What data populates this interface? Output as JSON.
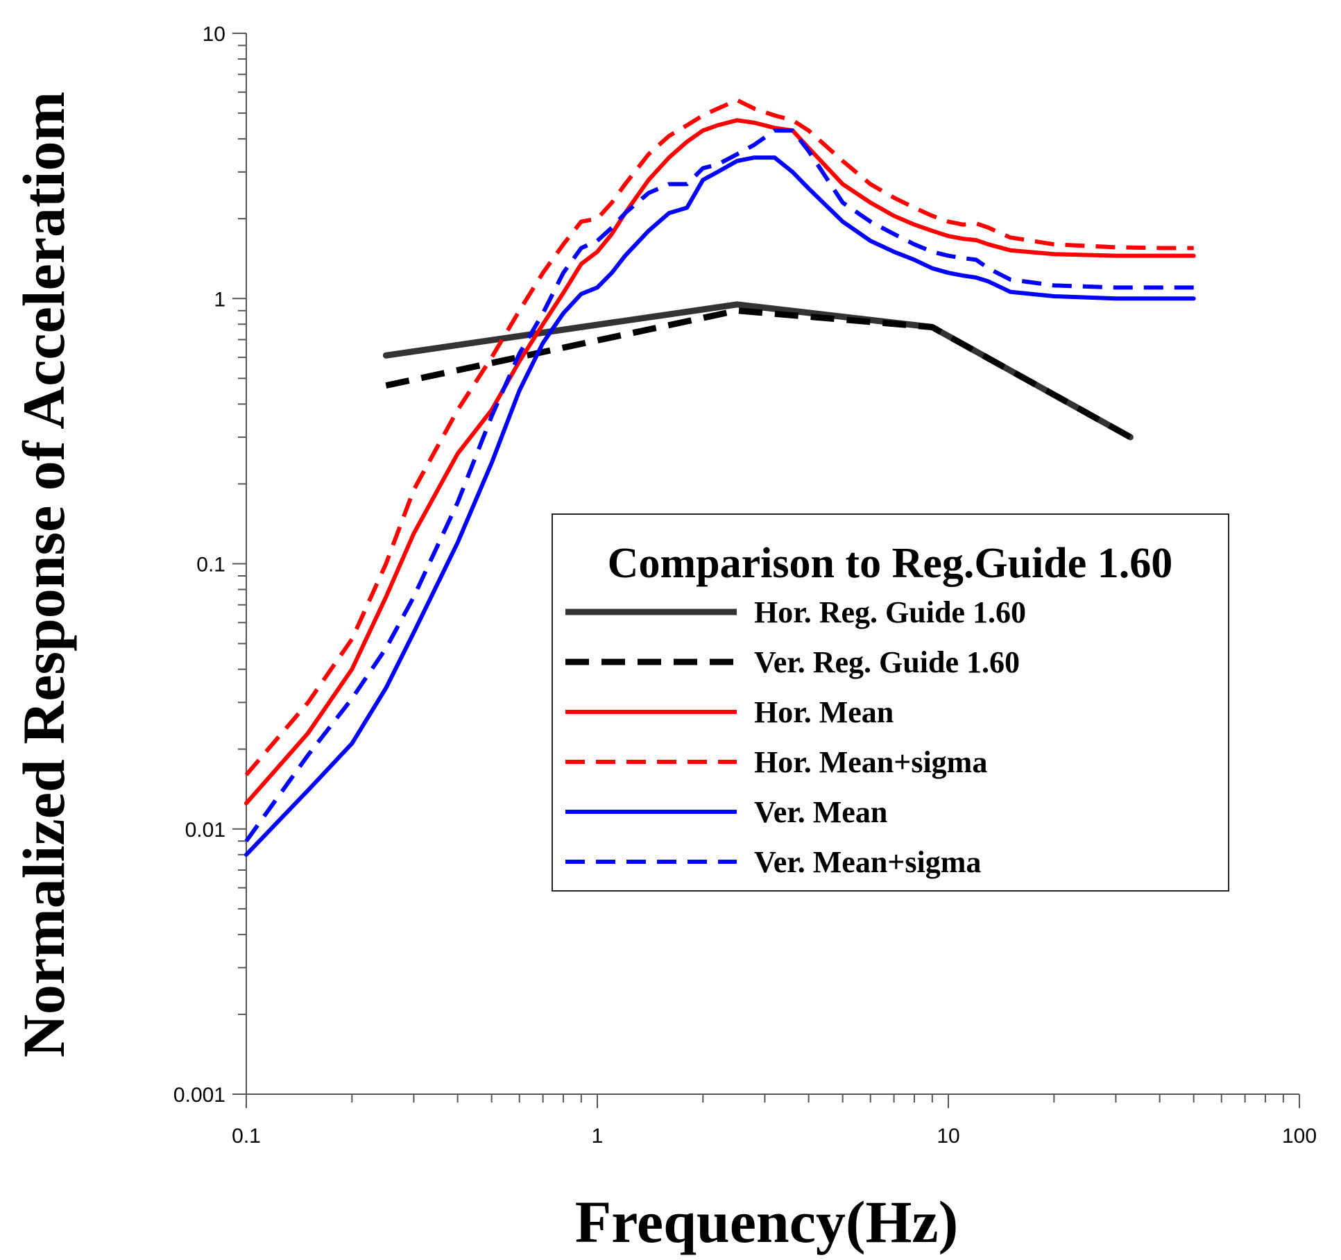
{
  "chart_data": {
    "type": "line",
    "xscale": "log",
    "yscale": "log",
    "xlabel": "Frequency(Hz)",
    "ylabel": "Normalized Response of Acceleratiom",
    "xlim": [
      0.1,
      100
    ],
    "ylim": [
      0.001,
      10
    ],
    "x_ticks": [
      {
        "value": 0.1,
        "label": "0.1"
      },
      {
        "value": 1,
        "label": "1"
      },
      {
        "value": 10,
        "label": "10"
      },
      {
        "value": 100,
        "label": "100"
      }
    ],
    "y_ticks": [
      {
        "value": 0.001,
        "label": "0.001"
      },
      {
        "value": 0.01,
        "label": "0.01"
      },
      {
        "value": 0.1,
        "label": "0.1"
      },
      {
        "value": 1,
        "label": "1"
      },
      {
        "value": 10,
        "label": "10"
      }
    ],
    "grid": false,
    "legend": {
      "title": "Comparison to Reg.Guide 1.60",
      "position": "center-right"
    },
    "series": [
      {
        "name": "Hor. Reg. Guide 1.60",
        "color": "#333333",
        "dash": "solid",
        "width": 9,
        "x": [
          0.25,
          2.5,
          9,
          33
        ],
        "y": [
          0.61,
          0.95,
          0.78,
          0.3
        ]
      },
      {
        "name": "Ver. Reg. Guide 1.60",
        "color": "#000000",
        "dash": "dashed",
        "width": 9,
        "x": [
          0.25,
          2.5,
          9,
          33
        ],
        "y": [
          0.47,
          0.9,
          0.78,
          0.3
        ]
      },
      {
        "name": "Hor. Mean",
        "color": "#ff0000",
        "dash": "solid",
        "width": 6,
        "x": [
          0.1,
          0.15,
          0.2,
          0.25,
          0.3,
          0.4,
          0.5,
          0.6,
          0.7,
          0.8,
          0.9,
          1.0,
          1.1,
          1.2,
          1.4,
          1.6,
          1.8,
          2.0,
          2.2,
          2.5,
          2.8,
          3.2,
          3.6,
          4.0,
          5.0,
          6.0,
          7.0,
          8.0,
          9.0,
          10,
          11,
          12,
          13,
          15,
          20,
          30,
          40,
          50
        ],
        "y": [
          0.0125,
          0.023,
          0.04,
          0.075,
          0.13,
          0.26,
          0.38,
          0.58,
          0.8,
          1.05,
          1.35,
          1.5,
          1.75,
          2.1,
          2.8,
          3.4,
          3.9,
          4.3,
          4.5,
          4.7,
          4.6,
          4.4,
          4.3,
          3.7,
          2.7,
          2.3,
          2.05,
          1.9,
          1.8,
          1.72,
          1.68,
          1.66,
          1.6,
          1.52,
          1.47,
          1.45,
          1.45,
          1.45
        ]
      },
      {
        "name": "Hor. Mean+sigma",
        "color": "#ff0000",
        "dash": "dashed",
        "width": 6,
        "x": [
          0.1,
          0.15,
          0.2,
          0.25,
          0.3,
          0.4,
          0.5,
          0.6,
          0.7,
          0.8,
          0.9,
          1.0,
          1.1,
          1.2,
          1.4,
          1.6,
          1.8,
          2.0,
          2.2,
          2.5,
          2.8,
          3.2,
          3.6,
          4.0,
          5.0,
          6.0,
          7.0,
          8.0,
          9.0,
          10,
          11,
          12,
          13,
          15,
          20,
          30,
          40,
          50
        ],
        "y": [
          0.016,
          0.03,
          0.052,
          0.1,
          0.19,
          0.38,
          0.6,
          0.9,
          1.25,
          1.6,
          1.95,
          2.0,
          2.3,
          2.7,
          3.5,
          4.1,
          4.5,
          4.9,
          5.2,
          5.6,
          5.2,
          4.9,
          4.7,
          4.3,
          3.3,
          2.7,
          2.4,
          2.2,
          2.05,
          1.95,
          1.9,
          1.92,
          1.85,
          1.7,
          1.6,
          1.56,
          1.55,
          1.55
        ]
      },
      {
        "name": "Ver. Mean",
        "color": "#0000ff",
        "dash": "solid",
        "width": 6,
        "x": [
          0.1,
          0.15,
          0.2,
          0.25,
          0.3,
          0.4,
          0.5,
          0.6,
          0.7,
          0.8,
          0.9,
          1.0,
          1.1,
          1.2,
          1.4,
          1.6,
          1.8,
          2.0,
          2.2,
          2.5,
          2.8,
          3.2,
          3.6,
          4.0,
          5.0,
          6.0,
          7.0,
          8.0,
          9.0,
          10,
          11,
          12,
          13,
          15,
          20,
          30,
          40,
          50
        ],
        "y": [
          0.008,
          0.014,
          0.021,
          0.034,
          0.055,
          0.12,
          0.24,
          0.45,
          0.68,
          0.88,
          1.04,
          1.1,
          1.25,
          1.45,
          1.8,
          2.1,
          2.2,
          2.8,
          3.0,
          3.3,
          3.4,
          3.4,
          3.0,
          2.6,
          1.95,
          1.65,
          1.5,
          1.4,
          1.3,
          1.25,
          1.22,
          1.2,
          1.16,
          1.06,
          1.02,
          1.0,
          1.0,
          1.0
        ]
      },
      {
        "name": "Ver. Mean+sigma",
        "color": "#0000ff",
        "dash": "dashed",
        "width": 6,
        "x": [
          0.1,
          0.15,
          0.2,
          0.25,
          0.3,
          0.4,
          0.5,
          0.6,
          0.7,
          0.8,
          0.9,
          1.0,
          1.1,
          1.2,
          1.4,
          1.6,
          1.8,
          2.0,
          2.2,
          2.5,
          2.8,
          3.2,
          3.6,
          4.0,
          5.0,
          6.0,
          7.0,
          8.0,
          9.0,
          10,
          11,
          12,
          13,
          15,
          20,
          30,
          40,
          50
        ],
        "y": [
          0.009,
          0.019,
          0.031,
          0.048,
          0.075,
          0.17,
          0.36,
          0.62,
          0.88,
          1.25,
          1.55,
          1.65,
          1.85,
          2.1,
          2.5,
          2.7,
          2.7,
          3.1,
          3.2,
          3.5,
          3.8,
          4.3,
          4.3,
          3.6,
          2.3,
          1.95,
          1.75,
          1.6,
          1.5,
          1.45,
          1.42,
          1.4,
          1.3,
          1.18,
          1.12,
          1.1,
          1.1,
          1.1
        ]
      }
    ]
  }
}
